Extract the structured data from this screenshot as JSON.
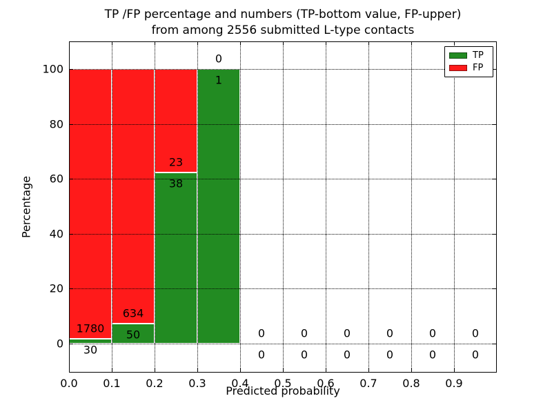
{
  "chart_data": {
    "type": "bar",
    "stacked": true,
    "title_line1": "TP /FP percentage and numbers (TP-bottom value, FP-upper)",
    "title_line2": "from among 2556 submitted L-type contacts",
    "xlabel": "Predicted probability",
    "ylabel": "Percentage",
    "xlim": [
      0.0,
      1.0
    ],
    "ylim": [
      -10,
      110
    ],
    "grid": "dotted",
    "background_color": "#ffffff",
    "text_color": "#000000",
    "legend_position": "upper right",
    "legend": [
      {
        "label": "TP",
        "color": "#228B22"
      },
      {
        "label": "FP",
        "color": "#FF1A1A"
      }
    ],
    "total_contacts": 2556,
    "x_ticks": [
      {
        "value": 0.0,
        "label": "0.0"
      },
      {
        "value": 0.1,
        "label": "0.1"
      },
      {
        "value": 0.2,
        "label": "0.2"
      },
      {
        "value": 0.3,
        "label": "0.3"
      },
      {
        "value": 0.4,
        "label": "0.4"
      },
      {
        "value": 0.5,
        "label": "0.5"
      },
      {
        "value": 0.6,
        "label": "0.6"
      },
      {
        "value": 0.7,
        "label": "0.7"
      },
      {
        "value": 0.8,
        "label": "0.8"
      },
      {
        "value": 0.9,
        "label": "0.9"
      }
    ],
    "y_ticks": [
      {
        "value": 0,
        "label": "0"
      },
      {
        "value": 20,
        "label": "20"
      },
      {
        "value": 40,
        "label": "40"
      },
      {
        "value": 60,
        "label": "60"
      },
      {
        "value": 80,
        "label": "80"
      },
      {
        "value": 100,
        "label": "100"
      }
    ],
    "bins": [
      {
        "x_start": 0.0,
        "x_end": 0.1,
        "tp_count": 30,
        "fp_count": 1780,
        "tp_pct": 1.66,
        "fp_pct": 98.34
      },
      {
        "x_start": 0.1,
        "x_end": 0.2,
        "tp_count": 50,
        "fp_count": 634,
        "tp_pct": 7.31,
        "fp_pct": 92.69
      },
      {
        "x_start": 0.2,
        "x_end": 0.3,
        "tp_count": 38,
        "fp_count": 23,
        "tp_pct": 62.3,
        "fp_pct": 37.7
      },
      {
        "x_start": 0.3,
        "x_end": 0.4,
        "tp_count": 1,
        "fp_count": 0,
        "tp_pct": 100,
        "fp_pct": 0
      },
      {
        "x_start": 0.4,
        "x_end": 0.5,
        "tp_count": 0,
        "fp_count": 0,
        "tp_pct": 0,
        "fp_pct": 0
      },
      {
        "x_start": 0.5,
        "x_end": 0.6,
        "tp_count": 0,
        "fp_count": 0,
        "tp_pct": 0,
        "fp_pct": 0
      },
      {
        "x_start": 0.6,
        "x_end": 0.7,
        "tp_count": 0,
        "fp_count": 0,
        "tp_pct": 0,
        "fp_pct": 0
      },
      {
        "x_start": 0.7,
        "x_end": 0.8,
        "tp_count": 0,
        "fp_count": 0,
        "tp_pct": 0,
        "fp_pct": 0
      },
      {
        "x_start": 0.8,
        "x_end": 0.9,
        "tp_count": 0,
        "fp_count": 0,
        "tp_pct": 0,
        "fp_pct": 0
      },
      {
        "x_start": 0.9,
        "x_end": 1.0,
        "tp_count": 0,
        "fp_count": 0,
        "tp_pct": 0,
        "fp_pct": 0
      }
    ]
  }
}
